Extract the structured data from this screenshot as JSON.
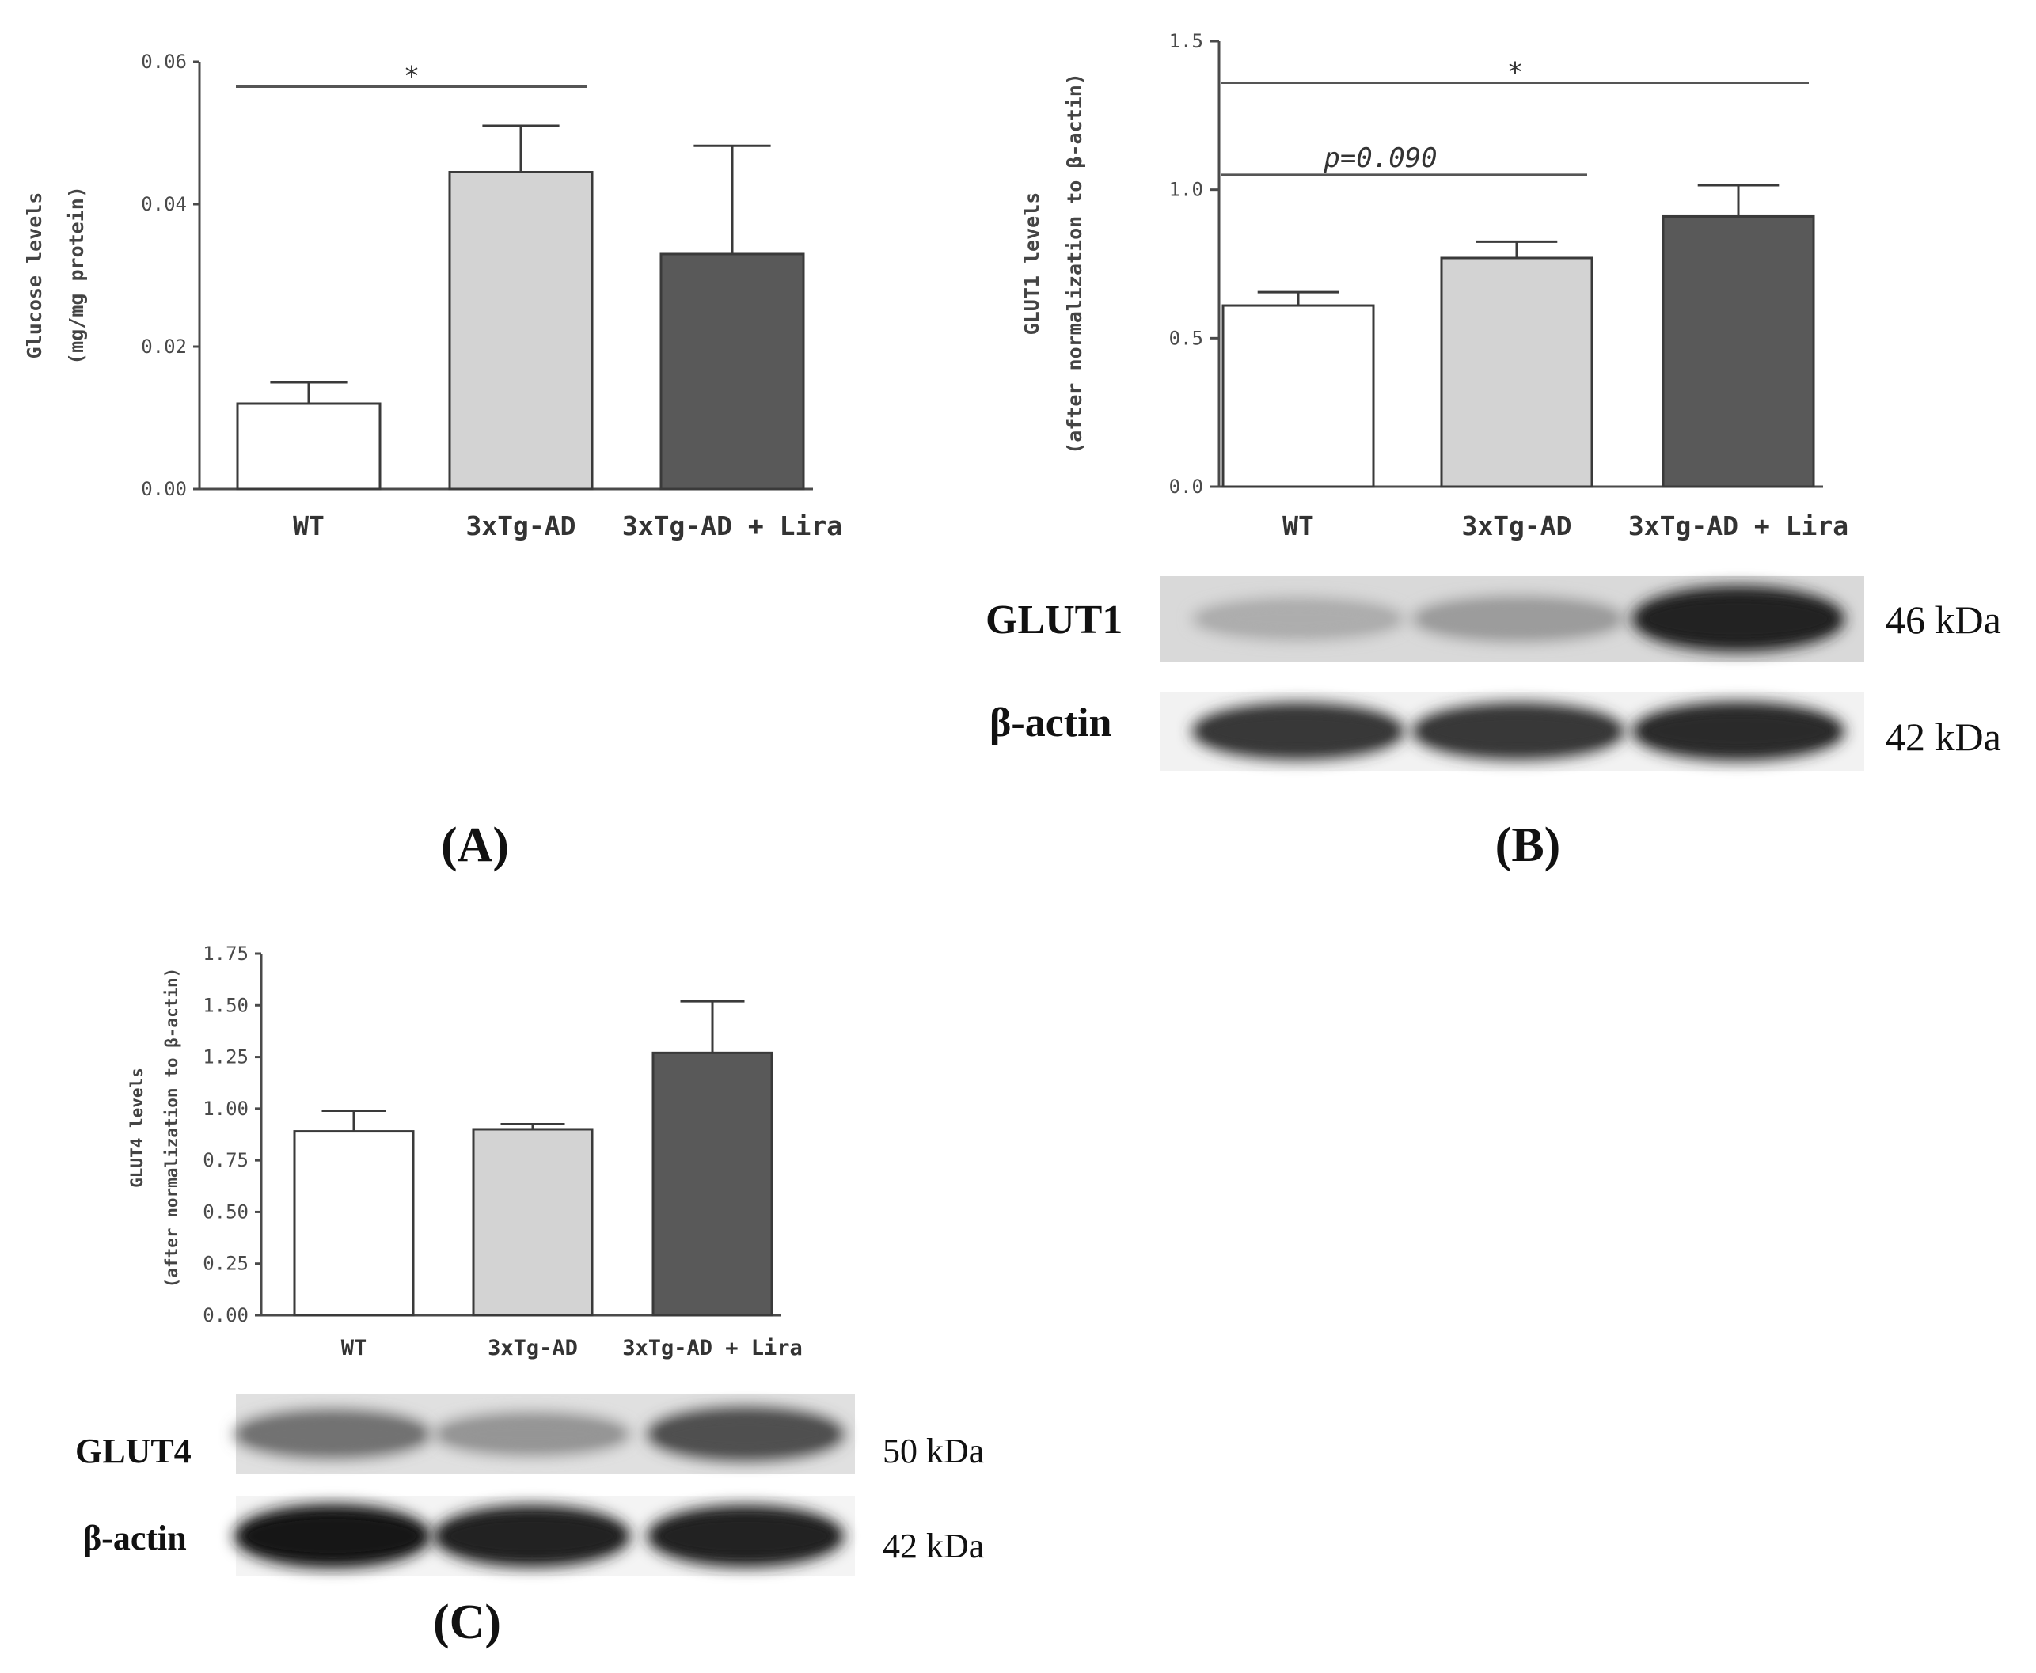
{
  "chart_data": [
    {
      "id": "A",
      "type": "bar",
      "panel_label": "(A)",
      "categories": [
        "WT",
        "3xTg-AD",
        "3xTg-AD + Lira"
      ],
      "values": [
        0.012,
        0.0445,
        0.033
      ],
      "errors": [
        0.003,
        0.0065,
        0.0152
      ],
      "bar_colors": [
        "#ffffff",
        "#d3d3d3",
        "#595959"
      ],
      "ylabel_lines": [
        "Glucose levels",
        "(mg/mg protein)"
      ],
      "ylim": [
        0,
        0.06
      ],
      "yticks": [
        0,
        0.02,
        0.04,
        0.06
      ],
      "ytick_labels": [
        "0.00",
        "0.02",
        "0.04",
        "0.06"
      ],
      "significance": [
        {
          "from": 0,
          "to": 1,
          "y": 0.0565,
          "label": "*"
        }
      ]
    },
    {
      "id": "B",
      "type": "bar",
      "panel_label": "(B)",
      "categories": [
        "WT",
        "3xTg-AD",
        "3xTg-AD + Lira"
      ],
      "values": [
        0.61,
        0.77,
        0.91
      ],
      "errors": [
        0.045,
        0.055,
        0.105
      ],
      "bar_colors": [
        "#ffffff",
        "#d3d3d3",
        "#595959"
      ],
      "ylabel_lines": [
        "GLUT1 levels",
        "(after normalization to β-actin)"
      ],
      "ylim": [
        0,
        1.5
      ],
      "yticks": [
        0,
        0.5,
        1.0,
        1.5
      ],
      "ytick_labels": [
        "0.0",
        "0.5",
        "1.0",
        "1.5"
      ],
      "significance": [
        {
          "from": 0,
          "to": 2,
          "y": 1.36,
          "label": "*"
        },
        {
          "from": 0,
          "to": 1,
          "y": 1.05,
          "label": "p=0.090"
        }
      ],
      "blots": [
        {
          "label": "GLUT1",
          "size": "46 kDa",
          "band_intensity": [
            0.35,
            0.42,
            0.95
          ]
        },
        {
          "label": "β-actin",
          "size": "42 kDa",
          "band_intensity": [
            0.85,
            0.85,
            0.9
          ]
        }
      ]
    },
    {
      "id": "C",
      "type": "bar",
      "panel_label": "(C)",
      "categories": [
        "WT",
        "3xTg-AD",
        "3xTg-AD + Lira"
      ],
      "values": [
        0.89,
        0.9,
        1.27
      ],
      "errors": [
        0.1,
        0.025,
        0.25
      ],
      "bar_colors": [
        "#ffffff",
        "#d3d3d3",
        "#595959"
      ],
      "ylabel_lines": [
        "GLUT4 levels",
        "(after normalization to β-actin)"
      ],
      "ylim": [
        0,
        1.75
      ],
      "yticks": [
        0,
        0.25,
        0.5,
        0.75,
        1.0,
        1.25,
        1.5,
        1.75
      ],
      "ytick_labels": [
        "0.00",
        "0.25",
        "0.50",
        "0.75",
        "1.00",
        "1.25",
        "1.50",
        "1.75"
      ],
      "significance": [],
      "blots": [
        {
          "label": "GLUT4",
          "size": "50 kDa",
          "band_intensity": [
            0.6,
            0.45,
            0.75
          ]
        },
        {
          "label": "β-actin",
          "size": "42 kDa",
          "band_intensity": [
            1.0,
            0.95,
            0.95
          ]
        }
      ]
    }
  ]
}
